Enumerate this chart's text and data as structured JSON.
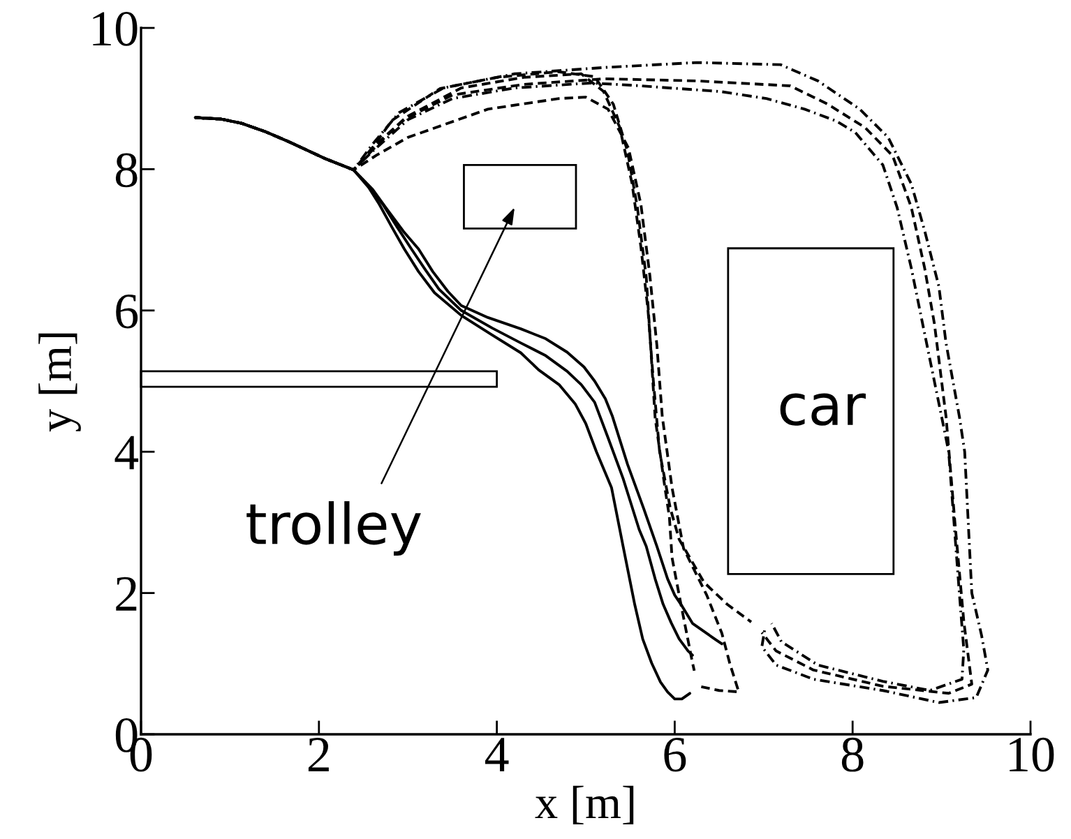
{
  "chart_data": {
    "type": "line",
    "xlabel": "x [m]",
    "ylabel": "y [m]",
    "xlim": [
      0,
      10
    ],
    "ylim": [
      0,
      10
    ],
    "xticks": [
      0,
      2,
      4,
      6,
      8,
      10
    ],
    "yticks": [
      0,
      2,
      4,
      6,
      8,
      10
    ],
    "series": [
      {
        "color": "#000000",
        "line_style": "solid",
        "x": [
          0.61,
          0.9,
          1.13,
          1.4,
          1.66,
          2.07,
          2.39,
          2.6,
          2.75,
          2.95,
          3.12,
          3.28,
          3.45,
          3.6,
          3.9,
          4.27,
          4.55,
          4.79,
          4.98,
          5.1,
          5.22,
          5.3,
          5.47,
          5.65,
          5.8,
          5.92,
          6.0,
          6.07,
          6.2,
          6.46,
          6.53
        ],
        "values": [
          8.73,
          8.71,
          8.65,
          8.53,
          8.39,
          8.15,
          7.99,
          7.72,
          7.46,
          7.12,
          6.87,
          6.55,
          6.27,
          6.07,
          5.9,
          5.74,
          5.6,
          5.41,
          5.2,
          5.0,
          4.75,
          4.5,
          3.82,
          3.2,
          2.66,
          2.2,
          1.97,
          1.84,
          1.57,
          1.34,
          1.28
        ]
      },
      {
        "color": "#000000",
        "line_style": "solid",
        "x": [
          0.61,
          0.9,
          1.13,
          1.4,
          1.66,
          2.07,
          2.39,
          2.58,
          2.72,
          2.88,
          3.04,
          3.2,
          3.35,
          3.6,
          3.95,
          4.27,
          4.55,
          4.79,
          4.95,
          5.1,
          5.25,
          5.42,
          5.5,
          5.6,
          5.68,
          5.78,
          5.87,
          5.96,
          6.05,
          6.15,
          6.2
        ],
        "values": [
          8.73,
          8.71,
          8.65,
          8.53,
          8.39,
          8.15,
          7.99,
          7.73,
          7.5,
          7.18,
          6.87,
          6.57,
          6.3,
          6.0,
          5.75,
          5.54,
          5.36,
          5.14,
          4.95,
          4.7,
          4.2,
          3.62,
          3.3,
          2.9,
          2.66,
          2.2,
          1.84,
          1.58,
          1.35,
          1.18,
          1.12
        ]
      },
      {
        "color": "#000000",
        "line_style": "solid",
        "x": [
          0.61,
          0.9,
          1.13,
          1.4,
          1.66,
          2.07,
          2.39,
          2.56,
          2.68,
          2.82,
          2.96,
          3.12,
          3.3,
          3.6,
          3.95,
          4.27,
          4.47,
          4.7,
          4.88,
          5.0,
          5.12,
          5.22,
          5.29,
          5.42,
          5.55,
          5.64,
          5.74,
          5.84,
          5.92,
          6.0,
          6.08,
          6.17
        ],
        "values": [
          8.73,
          8.71,
          8.65,
          8.53,
          8.39,
          8.15,
          7.99,
          7.74,
          7.5,
          7.18,
          6.87,
          6.55,
          6.25,
          5.93,
          5.65,
          5.4,
          5.16,
          4.95,
          4.68,
          4.4,
          4.0,
          3.7,
          3.49,
          2.66,
          1.84,
          1.35,
          1.01,
          0.74,
          0.6,
          0.5,
          0.5,
          0.58
        ]
      },
      {
        "color": "#000000",
        "line_style": "dashed",
        "x": [
          0.61,
          0.9,
          1.13,
          1.4,
          1.66,
          2.07,
          2.39,
          2.6,
          2.82,
          3.36,
          4.0,
          4.69,
          5.1,
          5.31,
          5.47,
          5.58,
          5.68,
          5.73,
          5.78,
          5.89,
          5.94,
          5.97,
          6.07,
          6.2,
          6.22
        ],
        "values": [
          8.73,
          8.71,
          8.65,
          8.53,
          8.39,
          8.15,
          7.99,
          8.3,
          8.69,
          9.14,
          9.3,
          9.38,
          9.31,
          8.92,
          8.25,
          7.46,
          6.47,
          5.48,
          4.48,
          3.49,
          3.08,
          2.5,
          1.84,
          1.01,
          0.9
        ]
      },
      {
        "color": "#000000",
        "line_style": "dashed",
        "x": [
          0.61,
          0.9,
          1.13,
          1.4,
          1.66,
          2.07,
          2.39,
          2.7,
          3.0,
          3.6,
          4.3,
          4.95,
          5.2,
          5.38,
          5.52,
          5.62,
          5.7,
          5.76,
          5.83,
          5.95,
          6.05,
          6.33,
          6.59,
          6.86
        ],
        "values": [
          8.73,
          8.71,
          8.65,
          8.53,
          8.39,
          8.15,
          7.99,
          8.4,
          8.75,
          9.15,
          9.3,
          9.35,
          9.1,
          8.6,
          7.8,
          6.9,
          6.0,
          5.0,
          4.0,
          3.2,
          2.76,
          2.15,
          1.84,
          1.59
        ]
      },
      {
        "color": "#000000",
        "line_style": "dashed",
        "x": [
          0.61,
          0.9,
          1.13,
          1.4,
          1.66,
          2.07,
          2.39,
          2.65,
          3.0,
          3.9,
          4.7,
          5.0,
          5.25,
          5.48,
          5.62,
          5.72,
          5.8,
          5.86,
          5.97,
          6.1,
          6.36,
          6.53,
          6.62,
          6.72,
          6.5,
          6.27
        ],
        "values": [
          8.73,
          8.71,
          8.65,
          8.53,
          8.39,
          8.15,
          7.99,
          8.2,
          8.45,
          8.85,
          9.0,
          9.02,
          8.85,
          8.3,
          7.5,
          6.5,
          5.5,
          4.5,
          3.49,
          2.63,
          1.97,
          1.43,
          1.0,
          0.6,
          0.62,
          0.68
        ]
      },
      {
        "color": "#000000",
        "line_style": "dashdot",
        "x": [
          0.61,
          0.9,
          1.13,
          1.4,
          1.66,
          2.07,
          2.39,
          2.6,
          2.9,
          3.4,
          4.2,
          5.21,
          6.25,
          7.19,
          7.61,
          8.08,
          8.4,
          8.66,
          8.81,
          8.97,
          9.05,
          9.2,
          9.26,
          9.34,
          9.45,
          9.52,
          9.39,
          8.97,
          8.34,
          7.56,
          7.14,
          6.98,
          7.01
        ],
        "values": [
          8.73,
          8.71,
          8.65,
          8.53,
          8.39,
          8.15,
          7.99,
          8.35,
          8.8,
          9.15,
          9.35,
          9.44,
          9.51,
          9.48,
          9.25,
          8.85,
          8.45,
          7.79,
          7.13,
          6.34,
          5.54,
          4.5,
          4.0,
          2.0,
          1.4,
          0.91,
          0.52,
          0.45,
          0.62,
          0.78,
          0.98,
          1.24,
          1.47
        ]
      },
      {
        "color": "#000000",
        "line_style": "dashed",
        "x": [
          0.61,
          0.9,
          1.13,
          1.4,
          1.66,
          2.07,
          2.39,
          2.6,
          2.95,
          3.5,
          4.3,
          5.21,
          6.25,
          7.3,
          7.72,
          8.14,
          8.45,
          8.66,
          8.81,
          8.92,
          9.05,
          9.15,
          9.25,
          9.34,
          9.08,
          8.34,
          7.56,
          7.14,
          6.98
        ],
        "values": [
          8.73,
          8.71,
          8.65,
          8.53,
          8.39,
          8.15,
          7.99,
          8.3,
          8.7,
          9.05,
          9.2,
          9.28,
          9.25,
          9.18,
          8.92,
          8.59,
          8.19,
          7.46,
          6.6,
          5.81,
          4.5,
          3.0,
          1.6,
          0.71,
          0.58,
          0.68,
          0.91,
          1.18,
          1.44
        ]
      },
      {
        "color": "#000000",
        "line_style": "dashdot",
        "x": [
          0.61,
          0.9,
          1.13,
          1.4,
          1.66,
          2.07,
          2.39,
          2.6,
          3.0,
          3.5,
          4.2,
          5.05,
          5.5,
          6.51,
          7.03,
          7.46,
          7.82,
          8.03,
          8.34,
          8.5,
          8.66,
          8.81,
          9.0,
          9.08,
          9.2,
          9.25,
          9.23,
          8.87,
          8.34,
          7.61,
          7.2,
          7.09
        ],
        "values": [
          8.73,
          8.71,
          8.65,
          8.53,
          8.39,
          8.15,
          7.99,
          8.25,
          8.7,
          9.0,
          9.15,
          9.22,
          9.19,
          9.1,
          9.0,
          8.85,
          8.68,
          8.52,
          8.06,
          7.46,
          6.6,
          5.67,
          4.5,
          4.0,
          2.0,
          1.2,
          0.78,
          0.62,
          0.75,
          0.98,
          1.31,
          1.57
        ]
      }
    ],
    "annotations": [
      "trolley",
      "car"
    ]
  }
}
